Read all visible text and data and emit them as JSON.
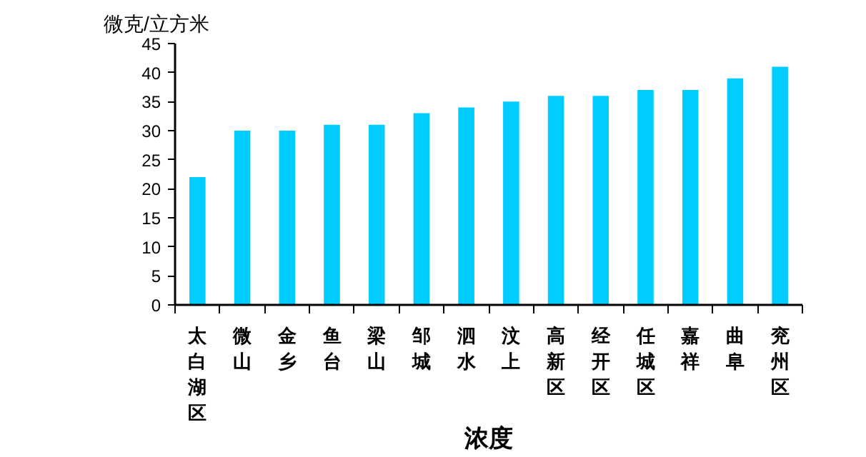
{
  "chart_data": {
    "type": "bar",
    "ylabel": "微克/立方米",
    "xlabel": "浓度",
    "categories": [
      "太白湖区",
      "微山",
      "金乡",
      "鱼台",
      "梁山",
      "邹城",
      "泗水",
      "汶上",
      "高新区",
      "经开区",
      "任城区",
      "嘉祥",
      "曲阜",
      "兖州区"
    ],
    "values": [
      22,
      30,
      30,
      31,
      31,
      33,
      34,
      35,
      36,
      36,
      37,
      37,
      39,
      41
    ],
    "color": "#00ccff",
    "ylim": [
      0,
      45
    ],
    "yticks": [
      0,
      5,
      10,
      15,
      20,
      25,
      30,
      35,
      40,
      45
    ],
    "grid": false
  }
}
